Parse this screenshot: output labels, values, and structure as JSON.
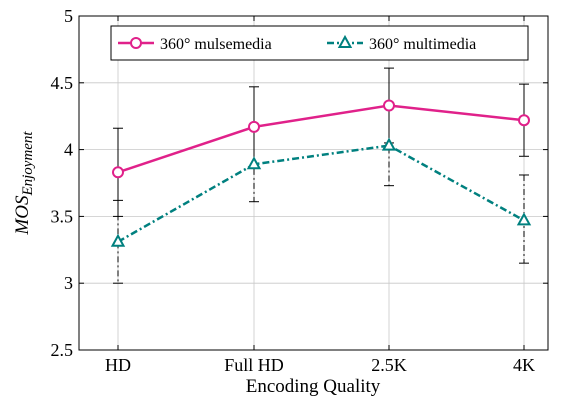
{
  "chart_data": {
    "type": "line",
    "title": "",
    "xlabel": "Encoding Quality",
    "ylabel_main": "MOS",
    "ylabel_sub": "Enjoyment",
    "categories": [
      "HD",
      "Full HD",
      "2.5K",
      "4K"
    ],
    "ylim": [
      2.5,
      5
    ],
    "yticks": [
      "2.5",
      "3",
      "3.5",
      "4",
      "4.5",
      "5"
    ],
    "grid": true,
    "legend_position": "top",
    "series": [
      {
        "name": "360° mulsemedia",
        "color": "#e0218a",
        "marker": "circle",
        "line_style": "solid",
        "values": [
          3.83,
          4.17,
          4.33,
          4.22
        ],
        "err_low": [
          3.5,
          3.87,
          4.05,
          3.95
        ],
        "err_high": [
          4.16,
          4.47,
          4.61,
          4.49
        ]
      },
      {
        "name": "360° multimedia",
        "color": "#00807f",
        "marker": "triangle",
        "line_style": "dashdot",
        "values": [
          3.31,
          3.89,
          4.03,
          3.47
        ],
        "err_low": [
          3.0,
          3.61,
          3.73,
          3.15
        ],
        "err_high": [
          3.62,
          4.17,
          4.33,
          3.81
        ]
      }
    ]
  }
}
